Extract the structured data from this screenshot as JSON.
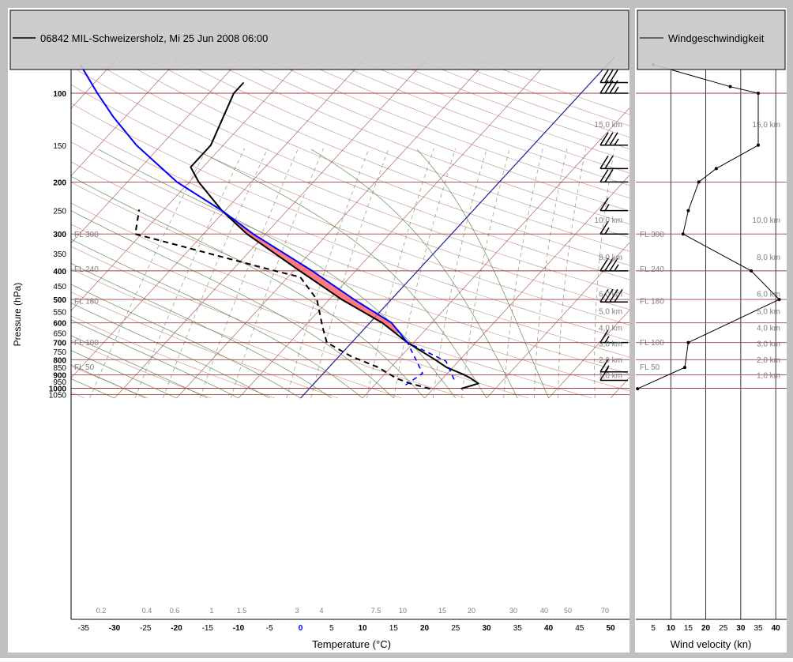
{
  "colors": {
    "frame": "#c0c0c0",
    "header": "#c8c8c8",
    "isobar": "#a04040",
    "isotherm": "#a04040",
    "dry_adiabat": "#80a070",
    "moist_adiabat": "#4a7a3a",
    "mixing_ratio": "#98a890",
    "temperature": "#000000",
    "dewpoint": "#000000",
    "parcel": "#0000ff",
    "cape_fill": "#ff6666",
    "zero_isotherm": "#20209a",
    "wind_profile": "#000000"
  },
  "legend": {
    "main": "06842 MIL-Schweizersholz, Mi 25 Jun 2008 06:00",
    "side": "Windgeschwindigkeit"
  },
  "chart_data": [
    {
      "type": "line",
      "subtype": "skew-T log-p diagram",
      "title": "06842 MIL-Schweizersholz, Mi 25 Jun 2008 06:00",
      "xlabel": "Temperature (°C)",
      "ylabel": "Pressure (hPa)",
      "x_ticks": [
        -35,
        -30,
        -25,
        -20,
        -15,
        -10,
        -5,
        0,
        5,
        10,
        15,
        20,
        25,
        30,
        35,
        40,
        45,
        50
      ],
      "x_ticks_bold": [
        -30,
        -20,
        -10,
        0,
        10,
        20,
        30,
        40,
        50
      ],
      "y_ticks": [
        100,
        150,
        200,
        250,
        300,
        350,
        400,
        450,
        500,
        550,
        600,
        650,
        700,
        750,
        800,
        850,
        900,
        950,
        1000,
        1050
      ],
      "y_ticks_bold": [
        100,
        200,
        300,
        400,
        500,
        600,
        700,
        800,
        900,
        1000
      ],
      "y_scale": "log",
      "ylim": [
        1080,
        80
      ],
      "xlim_at_surface": [
        -38,
        50
      ],
      "grid": true,
      "flight_levels": [
        {
          "label": "FL 300",
          "p": 300
        },
        {
          "label": "FL 240",
          "p": 393
        },
        {
          "label": "FL 180",
          "p": 505
        },
        {
          "label": "FL 100",
          "p": 697
        },
        {
          "label": "FL 50",
          "p": 843
        }
      ],
      "heights": [
        {
          "label": "15,0 km",
          "p": 127
        },
        {
          "label": "10,0 km",
          "p": 268
        },
        {
          "label": "8,0 km",
          "p": 358
        },
        {
          "label": "6,0 km",
          "p": 477
        },
        {
          "label": "5,0 km",
          "p": 547
        },
        {
          "label": "4,0 km",
          "p": 622
        },
        {
          "label": "3,0 km",
          "p": 703
        },
        {
          "label": "2,0 km",
          "p": 798
        },
        {
          "label": "1,0 km",
          "p": 901
        }
      ],
      "mixing_ratio_labels": [
        "0.2",
        "0.4",
        "0.6",
        "1",
        "1.5",
        "3",
        "4",
        "7.5",
        "10",
        "15",
        "20",
        "30",
        "40",
        "50",
        "70"
      ],
      "series": [
        {
          "name": "temperature",
          "style": "solid",
          "points": [
            [
              1004,
              24.5
            ],
            [
              963,
              26.5
            ],
            [
              925,
              24.5
            ],
            [
              901,
              23.0
            ],
            [
              850,
              19.0
            ],
            [
              800,
              16.0
            ],
            [
              700,
              9.0
            ],
            [
              600,
              2.0
            ],
            [
              500,
              -8.0
            ],
            [
              400,
              -19.0
            ],
            [
              300,
              -33.0
            ],
            [
              250,
              -40.5
            ],
            [
              200,
              -48.5
            ],
            [
              178,
              -52.0
            ],
            [
              150,
              -52.0
            ],
            [
              100,
              -56.0
            ],
            [
              92,
              -56.0
            ]
          ]
        },
        {
          "name": "dewpoint",
          "style": "dashed",
          "points": [
            [
              1004,
              19.5
            ],
            [
              963,
              15.5
            ],
            [
              925,
              12.5
            ],
            [
              850,
              8.0
            ],
            [
              780,
              2.0
            ],
            [
              700,
              -4.0
            ],
            [
              620,
              -7.0
            ],
            [
              500,
              -12.0
            ],
            [
              420,
              -18.0
            ],
            [
              400,
              -23.0
            ],
            [
              300,
              -51.0
            ],
            [
              248,
              -54.0
            ]
          ]
        },
        {
          "name": "parcel",
          "style": "solid",
          "points": [
            [
              700,
              9.0
            ],
            [
              600,
              3.5
            ],
            [
              500,
              -6.0
            ],
            [
              400,
              -17.0
            ],
            [
              300,
              -32.0
            ],
            [
              250,
              -40.5
            ],
            [
              200,
              -52.0
            ],
            [
              150,
              -64.0
            ],
            [
              120,
              -72.0
            ],
            [
              100,
              -78.0
            ],
            [
              80,
              -85.0
            ]
          ]
        },
        {
          "name": "parcel-low",
          "style": "dashed",
          "points": [
            [
              975,
              15.0
            ],
            [
              890,
              16.0
            ],
            [
              700,
              9.0
            ],
            [
              810,
              18.0
            ],
            [
              934,
              22.0
            ]
          ]
        }
      ],
      "cape_region": {
        "from_p": 650,
        "to_p": 245
      }
    },
    {
      "type": "line",
      "title": "Windgeschwindigkeit",
      "xlabel": "Wind velocity (kn)",
      "x_ticks": [
        5,
        10,
        15,
        20,
        25,
        30,
        35,
        40
      ],
      "xlim": [
        0,
        42
      ],
      "y_scale": "log",
      "series": [
        {
          "name": "Windgeschwindigkeit",
          "points": [
            [
              1004,
              0.5
            ],
            [
              850,
              14.0
            ],
            [
              700,
              15.0
            ],
            [
              500,
              41.0
            ],
            [
              400,
              33.0
            ],
            [
              300,
              13.5
            ],
            [
              250,
              15.0
            ],
            [
              200,
              18.0
            ],
            [
              180,
              23.0
            ],
            [
              150,
              35.0
            ],
            [
              100,
              35.0
            ],
            [
              95,
              27.0
            ],
            [
              80,
              5.0
            ]
          ]
        }
      ],
      "wind_barbs": [
        {
          "p": 940,
          "speed": 10
        },
        {
          "p": 880,
          "speed": 15
        },
        {
          "p": 700,
          "speed": 15
        },
        {
          "p": 510,
          "speed": 40
        },
        {
          "p": 400,
          "speed": 35
        },
        {
          "p": 300,
          "speed": 15
        },
        {
          "p": 250,
          "speed": 15
        },
        {
          "p": 200,
          "speed": 20
        },
        {
          "p": 180,
          "speed": 20
        },
        {
          "p": 150,
          "speed": 35
        },
        {
          "p": 100,
          "speed": 35
        },
        {
          "p": 92,
          "speed": 30
        }
      ]
    }
  ]
}
